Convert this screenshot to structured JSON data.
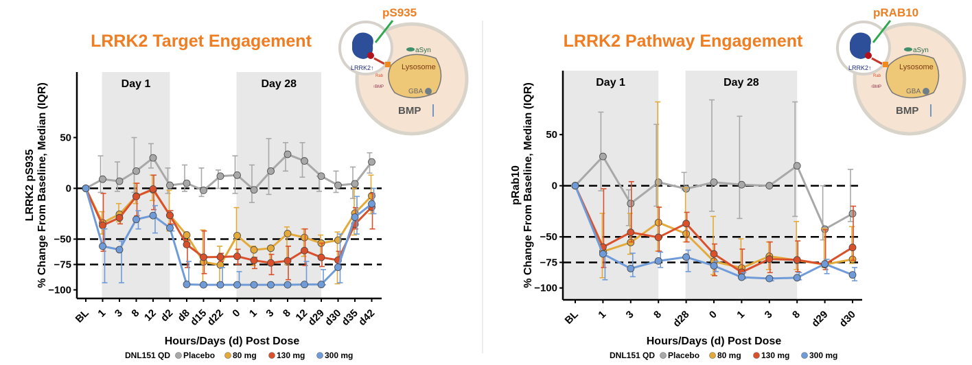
{
  "legend": {
    "prefix": "DNL151 QD",
    "items": [
      {
        "label": "Placebo",
        "color": "#a8a8a8"
      },
      {
        "label": "80 mg",
        "color": "#e3aa3a"
      },
      {
        "label": "130 mg",
        "color": "#d9502a"
      },
      {
        "label": "300 mg",
        "color": "#6f9bd9"
      }
    ]
  },
  "diagrams": [
    {
      "marker": "pS935",
      "lrrk2": "LRRK2↑",
      "asyn": "aSyn",
      "lysosome": "Lysosome",
      "gba": "GBA",
      "bmp": "BMP",
      "rab": "Rab",
      "bmp_small": "↑BMP"
    },
    {
      "marker": "pRAB10",
      "lrrk2": "LRRK2↑",
      "asyn": "aSyn",
      "lysosome": "Lysosome",
      "gba": "GBA",
      "bmp": "BMP",
      "rab": "Rab",
      "bmp_small": "↑BMP"
    }
  ],
  "chart_data": [
    {
      "type": "line",
      "title": "LRRK2 Target Engagement",
      "ylabel": "LRRK2 pS935",
      "ylabel2": "% Change From Baseline, Median (IQR)",
      "xlabel": "Hours/Days (d) Post Dose",
      "ylim": [
        -108,
        90
      ],
      "yticks": [
        50,
        0,
        -50,
        -75,
        -100
      ],
      "ytick_labels": [
        "50",
        "0",
        "−50",
        "−75",
        "−100"
      ],
      "reference_lines": [
        0,
        -50,
        -75
      ],
      "bands": [
        {
          "label": "Day 1",
          "from": 1,
          "to": 5
        },
        {
          "label": "Day 28",
          "from": 9,
          "to": 14
        }
      ],
      "categories": [
        "BL",
        "1",
        "3",
        "8",
        "12",
        "d2",
        "d8",
        "d15",
        "d22",
        "0",
        "1",
        "3",
        "8",
        "12",
        "d29",
        "d30",
        "d35",
        "d42"
      ],
      "series": [
        {
          "name": "Placebo",
          "color": "#a8a8a8",
          "values": [
            0,
            9,
            7,
            17,
            30,
            3,
            5,
            -2,
            12,
            13,
            -1.5,
            17,
            33.5,
            27,
            12,
            3,
            4.5,
            26
          ],
          "iqr": [
            [
              0,
              0
            ],
            [
              -4,
              32
            ],
            [
              -3,
              26
            ],
            [
              -4,
              50
            ],
            [
              20,
              44
            ],
            [
              -5,
              20
            ],
            [
              -3,
              23
            ],
            [
              -8,
              20
            ],
            [
              0,
              18
            ],
            [
              -5,
              32
            ],
            [
              -14,
              23
            ],
            [
              -6,
              49
            ],
            [
              17,
              45
            ],
            [
              11,
              45
            ],
            [
              -3,
              12
            ],
            [
              -4,
              17
            ],
            [
              -10,
              21
            ],
            [
              15,
              35
            ]
          ]
        },
        {
          "name": "80 mg",
          "color": "#e3aa3a",
          "values": [
            0,
            -34,
            -25.5,
            -7.7,
            -1.5,
            -26.6,
            -46,
            -72.5,
            -75.5,
            -46.6,
            -60.6,
            -59,
            -44.6,
            -48.4,
            -54,
            -51,
            -24.5,
            -7.4
          ],
          "iqr": [
            [
              0,
              0
            ],
            [
              -45,
              -23
            ],
            [
              -33,
              -15
            ],
            [
              -15,
              5
            ],
            [
              -12,
              13
            ],
            [
              -42,
              -2
            ],
            [
              -52,
              -43
            ],
            [
              -95,
              -41
            ],
            [
              -93,
              -57
            ],
            [
              -66,
              -19
            ],
            [
              -76,
              -57
            ],
            [
              -75,
              -57
            ],
            [
              -75,
              -38
            ],
            [
              -67,
              -40
            ],
            [
              -66,
              -46
            ],
            [
              -94,
              -43
            ],
            [
              -46,
              0
            ],
            [
              -25,
              13
            ]
          ]
        },
        {
          "name": "130 mg",
          "color": "#d9502a",
          "values": [
            0,
            -36.5,
            -29,
            -8,
            -0.7,
            -26.6,
            -55.4,
            -67.8,
            -67.6,
            -67,
            -71,
            -73.4,
            -71.4,
            -61.3,
            -68,
            -70.7,
            -35.4,
            -18.5
          ],
          "iqr": [
            [
              0,
              0
            ],
            [
              -62,
              -5
            ],
            [
              -35,
              -26
            ],
            [
              -27,
              5
            ],
            [
              -21,
              13
            ],
            [
              -35,
              -22
            ],
            [
              -78,
              -51
            ],
            [
              -84,
              -42
            ],
            [
              -72,
              -64
            ],
            [
              -75,
              -60
            ],
            [
              -79,
              -68
            ],
            [
              -85,
              -65
            ],
            [
              -90,
              -57
            ],
            [
              -76,
              -40
            ],
            [
              -77,
              -54
            ],
            [
              -72,
              -62
            ],
            [
              -40,
              -19
            ],
            [
              -40,
              -5
            ]
          ]
        },
        {
          "name": "300 mg",
          "color": "#6f9bd9",
          "values": [
            0,
            -57,
            -60.4,
            -30.6,
            -26.8,
            -39,
            -94.6,
            -95,
            -95,
            -95,
            -95,
            -95,
            -95,
            -94.7,
            -94.7,
            -77.7,
            -28.4,
            -15.3
          ],
          "iqr": [
            [
              0,
              0
            ],
            [
              -93,
              -40
            ],
            [
              -93,
              -52
            ],
            [
              -40,
              -22
            ],
            [
              -44,
              -17
            ],
            [
              -42,
              -36
            ],
            [
              -95,
              -72
            ],
            [
              -95,
              -95
            ],
            [
              -95,
              -78
            ],
            [
              -95,
              -82
            ],
            [
              -95,
              -95
            ],
            [
              -95,
              -95
            ],
            [
              -95,
              -95
            ],
            [
              -95,
              -72
            ],
            [
              -95,
              -80
            ],
            [
              -93,
              -45
            ],
            [
              -45,
              -8
            ],
            [
              -25,
              0
            ]
          ]
        }
      ]
    },
    {
      "type": "line",
      "title": "LRRK2 Pathway Engagement",
      "ylabel": "pRab10",
      "ylabel2": "% Change From Baseline, Median (IQR)",
      "xlabel": "Hours/Days (d) Post Dose",
      "ylim": [
        -110,
        112
      ],
      "yticks": [
        50,
        0,
        -50,
        -75,
        -100
      ],
      "ytick_labels": [
        "50",
        "0",
        "−50",
        "−75",
        "−100"
      ],
      "reference_lines": [
        0,
        -50,
        -75
      ],
      "bands": [
        {
          "label": "Day 1",
          "from": 0,
          "to": 3
        },
        {
          "label": "Day 28",
          "from": 4,
          "to": 8
        }
      ],
      "categories": [
        "BL",
        "1",
        "3",
        "8",
        "d28",
        "0",
        "1",
        "3",
        "8",
        "d29",
        "d30"
      ],
      "series": [
        {
          "name": "Placebo",
          "color": "#a8a8a8",
          "values": [
            0,
            28.6,
            -17.4,
            3.4,
            -3,
            3.4,
            1,
            0,
            19.5,
            -42.5,
            -27.3
          ],
          "iqr": [
            [
              0,
              0
            ],
            [
              -5,
              72
            ],
            [
              -39,
              -4
            ],
            [
              -20,
              60
            ],
            [
              -4,
              13
            ],
            [
              -25,
              84
            ],
            [
              -32,
              68
            ],
            [
              0,
              0
            ],
            [
              -30,
              82
            ],
            [
              -53,
              0
            ],
            [
              -35,
              16
            ]
          ]
        },
        {
          "name": "80 mg",
          "color": "#e3aa3a",
          "values": [
            0,
            -64.4,
            -55.5,
            -36,
            -47,
            -74,
            -80.5,
            -69,
            -73,
            -77,
            -72
          ],
          "iqr": [
            [
              0,
              0
            ],
            [
              -90,
              -27
            ],
            [
              -67,
              -27
            ],
            [
              -64,
              82
            ],
            [
              -55,
              -2
            ],
            [
              -87,
              -30
            ],
            [
              -81,
              -52
            ],
            [
              -82,
              -55
            ],
            [
              -82,
              -35
            ],
            [
              -80,
              -42
            ],
            [
              -76,
              -40
            ]
          ]
        },
        {
          "name": "130 mg",
          "color": "#d9502a",
          "values": [
            0,
            -60,
            -45.6,
            -50.5,
            -37,
            -66.7,
            -84.6,
            -71.8,
            -72.5,
            -77,
            -60.4
          ],
          "iqr": [
            [
              0,
              0
            ],
            [
              -80,
              -3
            ],
            [
              -55,
              4
            ],
            [
              -64,
              -21
            ],
            [
              -55,
              -26
            ],
            [
              -88,
              -57
            ],
            [
              -86,
              -62
            ],
            [
              -85,
              -55
            ],
            [
              -84,
              -54
            ],
            [
              -82,
              -43
            ],
            [
              -73,
              -20
            ]
          ]
        },
        {
          "name": "300 mg",
          "color": "#6f9bd9",
          "values": [
            0,
            -66.7,
            -81,
            -73.6,
            -69.8,
            -78.3,
            -89.5,
            -90.8,
            -90,
            -76.5,
            -87.2
          ],
          "iqr": [
            [
              0,
              0
            ],
            [
              -92,
              -66
            ],
            [
              -89,
              -66
            ],
            [
              -80,
              -65
            ],
            [
              -84,
              -63
            ],
            [
              -84,
              -74
            ],
            [
              -91,
              -85
            ],
            [
              -93,
              -90
            ],
            [
              -92,
              -85
            ],
            [
              -86,
              -72
            ],
            [
              -93,
              -80
            ]
          ]
        }
      ]
    }
  ]
}
